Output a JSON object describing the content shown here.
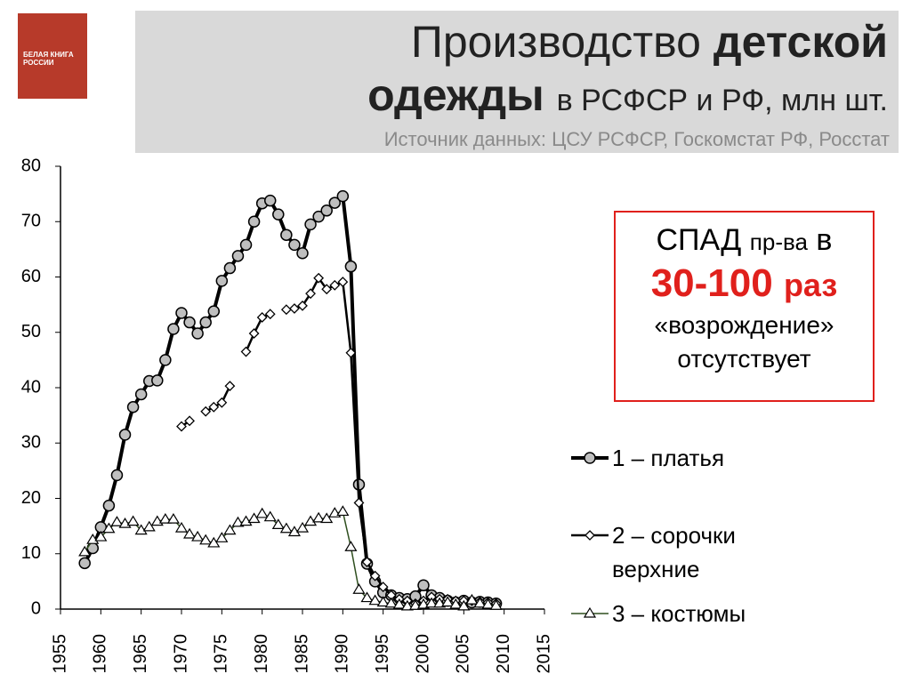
{
  "header": {
    "title_a": "Производство",
    "title_b": "детской",
    "title_c": "одежды",
    "title_d": "в РСФСР и РФ, млн шт.",
    "source": "Источник данных: ЦСУ РСФСР, Госкомстат РФ, Росстат",
    "cover_text": "БЕЛАЯ КНИГА РОССИИ"
  },
  "chart_data": {
    "type": "line",
    "x": [
      1958,
      1959,
      1960,
      1961,
      1962,
      1963,
      1964,
      1965,
      1966,
      1967,
      1968,
      1969,
      1970,
      1971,
      1972,
      1973,
      1974,
      1975,
      1976,
      1977,
      1978,
      1979,
      1980,
      1981,
      1982,
      1983,
      1984,
      1985,
      1986,
      1987,
      1988,
      1989,
      1990,
      1991,
      1992,
      1993,
      1994,
      1995,
      1996,
      1997,
      1998,
      1999,
      2000,
      2001,
      2002,
      2003,
      2004,
      2005,
      2006,
      2007,
      2008,
      2009
    ],
    "series": [
      {
        "name": "1 – платья",
        "color": "#000000",
        "marker": "circle",
        "values": [
          8.3,
          11,
          14.8,
          18.7,
          24.2,
          31.5,
          36.5,
          38.8,
          41.2,
          41.3,
          45,
          50.6,
          53.5,
          51.8,
          49.8,
          51.8,
          53.8,
          59.3,
          61.6,
          63.8,
          65.8,
          70,
          73.3,
          73.8,
          71.3,
          67.6,
          65.8,
          64.3,
          69.5,
          70.9,
          72,
          73.4,
          74.6,
          61.9,
          22.5,
          8.2,
          5,
          3,
          2.5,
          2,
          1.8,
          2.3,
          4.3,
          2.5,
          2,
          1.5,
          1.2,
          1.5,
          1.2,
          1.3,
          1.2,
          1
        ]
      },
      {
        "name": "2 – сорочки верхние",
        "color": "#000000",
        "marker": "diamond",
        "values": [
          null,
          null,
          null,
          null,
          null,
          null,
          null,
          null,
          null,
          null,
          null,
          null,
          33,
          34,
          null,
          35.7,
          36.5,
          37.3,
          40.3,
          null,
          46.5,
          49.8,
          52.7,
          53.3,
          null,
          54.1,
          54.3,
          54.8,
          57,
          59.8,
          57.8,
          58.5,
          59.1,
          46.3,
          19.2,
          8.5,
          6,
          4,
          2.5,
          1.8,
          1.5,
          1,
          1.5,
          2.2,
          1.8,
          1.8,
          1.5,
          1.5,
          1.5,
          1.3,
          1.2,
          1
        ]
      },
      {
        "name": "3 – костюмы",
        "color": "#2f4f1f",
        "marker": "triangle",
        "values": [
          10.3,
          12.5,
          13,
          14.5,
          15.7,
          15.4,
          15.8,
          14.2,
          14.8,
          15.8,
          16.2,
          16.2,
          14.6,
          13.5,
          13,
          12.4,
          11.9,
          12.8,
          14.2,
          15.6,
          15.8,
          16.3,
          17.2,
          16.6,
          15.2,
          14.5,
          13.9,
          14.6,
          15.8,
          16.4,
          16.3,
          17.3,
          17.6,
          11.2,
          3.5,
          2,
          1.5,
          1.2,
          1,
          0.8,
          0.5,
          0.6,
          0.8,
          1,
          1,
          1.2,
          0.8,
          0.5,
          1.6,
          1,
          0.8,
          0.6
        ]
      }
    ],
    "xlim": [
      1955,
      2015
    ],
    "xticks": [
      1955,
      1960,
      1965,
      1970,
      1975,
      1980,
      1985,
      1990,
      1995,
      2000,
      2005,
      2010,
      2015
    ],
    "ylim": [
      0,
      80
    ],
    "yticks": [
      0,
      10,
      20,
      30,
      40,
      50,
      60,
      70,
      80
    ],
    "annotation": {
      "a": "СПАД",
      "b": "пр-ва",
      "c": "в",
      "d": "30-100",
      "e": "раз",
      "f": "«возрождение»",
      "g": "отсутствует"
    }
  }
}
